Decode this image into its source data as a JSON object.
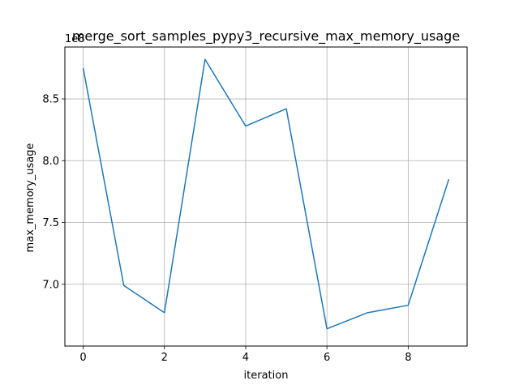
{
  "chart_data": {
    "type": "line",
    "title": "merge_sort_samples_pypy3_recursive_max_memory_usage",
    "xlabel": "iteration",
    "ylabel": "max_memory_usage",
    "offset_label": "1e8",
    "x": [
      0,
      1,
      2,
      3,
      4,
      5,
      6,
      7,
      8,
      9
    ],
    "series": [
      {
        "values": [
          8.75,
          6.99,
          6.77,
          8.82,
          8.28,
          8.42,
          6.64,
          6.77,
          6.83,
          7.85
        ],
        "color": "#1f77b4"
      }
    ],
    "xlim": [
      -0.45,
      9.45
    ],
    "ylim": [
      6.5,
      8.92
    ],
    "xticks": [
      0,
      2,
      4,
      6,
      8
    ],
    "xtick_labels": [
      "0",
      "2",
      "4",
      "6",
      "8"
    ],
    "yticks": [
      7.0,
      7.5,
      8.0,
      8.5
    ],
    "ytick_labels": [
      "7.0",
      "7.5",
      "8.0",
      "8.5"
    ],
    "grid": true,
    "legend": "none"
  }
}
